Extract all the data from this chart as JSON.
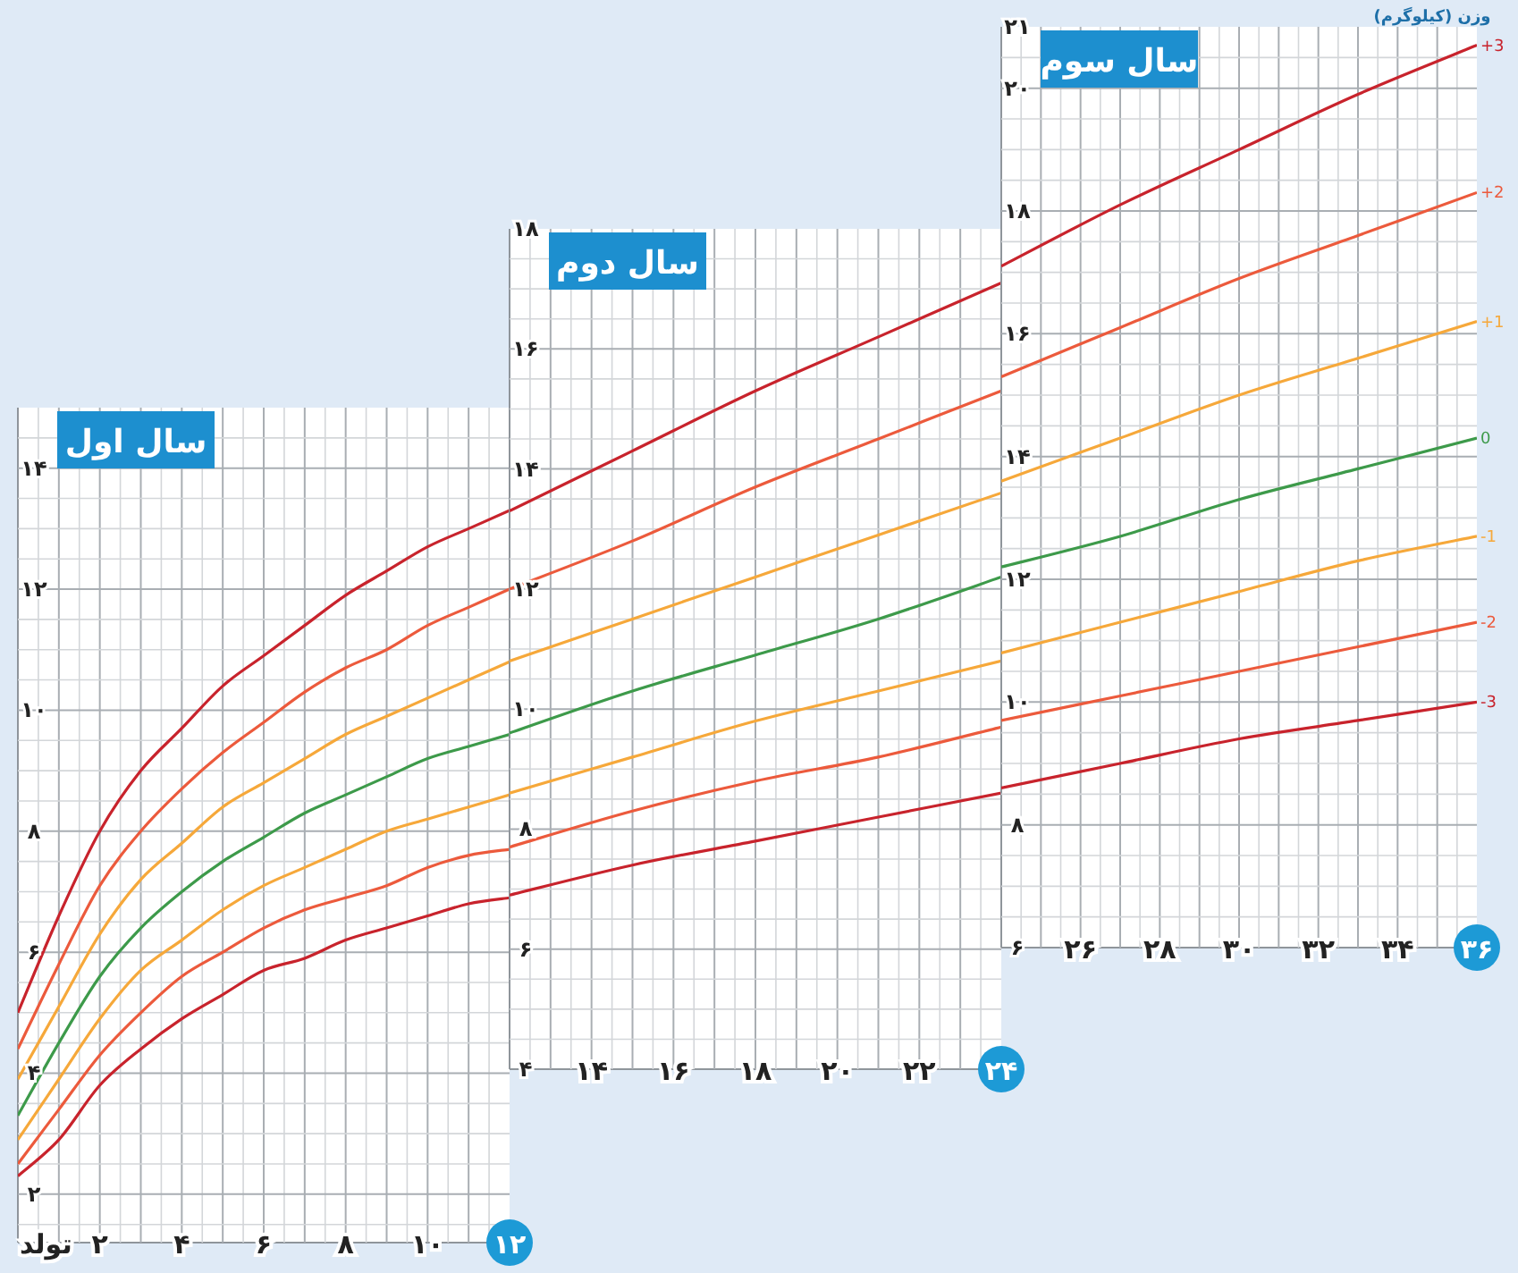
{
  "chart_data": [
    {
      "type": "line",
      "title": "سال اول",
      "xlim": [
        0,
        12
      ],
      "ylim": [
        1.2,
        15
      ],
      "grid": true,
      "xticks": [
        {
          "value": 0,
          "label": "تولد"
        },
        {
          "value": 2,
          "label": "۲"
        },
        {
          "value": 4,
          "label": "۴"
        },
        {
          "value": 6,
          "label": "۶"
        },
        {
          "value": 8,
          "label": "۸"
        },
        {
          "value": 10,
          "label": "۱۰"
        },
        {
          "value": 12,
          "label": "۱۲"
        }
      ],
      "yticks": [
        {
          "value": 2,
          "label": "۲"
        },
        {
          "value": 4,
          "label": "۴"
        },
        {
          "value": 6,
          "label": "۶"
        },
        {
          "value": 8,
          "label": "۸"
        },
        {
          "value": 10,
          "label": "۱۰"
        },
        {
          "value": 12,
          "label": "۱۲"
        },
        {
          "value": 14,
          "label": "۱۴"
        }
      ],
      "x": [
        0,
        1,
        2,
        3,
        4,
        5,
        6,
        7,
        8,
        9,
        10,
        11,
        12
      ],
      "series": [
        {
          "color": "#c8232c",
          "values": [
            5.0,
            6.6,
            8.0,
            9.0,
            9.7,
            10.4,
            10.9,
            11.4,
            11.9,
            12.3,
            12.7,
            13.0,
            13.3
          ]
        },
        {
          "color": "#ec5a3c",
          "values": [
            4.4,
            5.8,
            7.1,
            8.0,
            8.7,
            9.3,
            9.8,
            10.3,
            10.7,
            11.0,
            11.4,
            11.7,
            12.0
          ]
        },
        {
          "color": "#f6a83a",
          "values": [
            3.9,
            5.1,
            6.3,
            7.2,
            7.8,
            8.4,
            8.8,
            9.2,
            9.6,
            9.9,
            10.2,
            10.5,
            10.8
          ]
        },
        {
          "color": "#3d9a4a",
          "values": [
            3.3,
            4.5,
            5.6,
            6.4,
            7.0,
            7.5,
            7.9,
            8.3,
            8.6,
            8.9,
            9.2,
            9.4,
            9.6
          ]
        },
        {
          "color": "#f6a83a",
          "values": [
            2.9,
            3.9,
            4.9,
            5.7,
            6.2,
            6.7,
            7.1,
            7.4,
            7.7,
            8.0,
            8.2,
            8.4,
            8.6
          ]
        },
        {
          "color": "#ec5a3c",
          "values": [
            2.5,
            3.4,
            4.3,
            5.0,
            5.6,
            6.0,
            6.4,
            6.7,
            6.9,
            7.1,
            7.4,
            7.6,
            7.7
          ]
        },
        {
          "color": "#c8232c",
          "values": [
            2.3,
            2.9,
            3.8,
            4.4,
            4.9,
            5.3,
            5.7,
            5.9,
            6.2,
            6.4,
            6.6,
            6.8,
            6.9
          ]
        }
      ]
    },
    {
      "type": "line",
      "title": "سال دوم",
      "xlim": [
        12,
        24
      ],
      "ylim": [
        4,
        18
      ],
      "grid": true,
      "xticks": [
        {
          "value": 14,
          "label": "۱۴"
        },
        {
          "value": 16,
          "label": "۱۶"
        },
        {
          "value": 18,
          "label": "۱۸"
        },
        {
          "value": 20,
          "label": "۲۰"
        },
        {
          "value": 22,
          "label": "۲۲"
        },
        {
          "value": 24,
          "label": "۲۴"
        }
      ],
      "yticks": [
        {
          "value": 4,
          "label": "۴"
        },
        {
          "value": 6,
          "label": "۶"
        },
        {
          "value": 8,
          "label": "۸"
        },
        {
          "value": 10,
          "label": "۱۰"
        },
        {
          "value": 12,
          "label": "۱۲"
        },
        {
          "value": 14,
          "label": "۱۴"
        },
        {
          "value": 16,
          "label": "۱۶"
        },
        {
          "value": 18,
          "label": "۱۸"
        }
      ],
      "x": [
        12,
        15,
        18,
        21,
        24
      ],
      "series": [
        {
          "color": "#c8232c",
          "values": [
            13.3,
            14.3,
            15.3,
            16.2,
            17.1
          ]
        },
        {
          "color": "#ec5a3c",
          "values": [
            12.0,
            12.8,
            13.7,
            14.5,
            15.3
          ]
        },
        {
          "color": "#f6a83a",
          "values": [
            10.8,
            11.5,
            12.2,
            12.9,
            13.6
          ]
        },
        {
          "color": "#3d9a4a",
          "values": [
            9.6,
            10.3,
            10.9,
            11.5,
            12.2
          ]
        },
        {
          "color": "#f6a83a",
          "values": [
            8.6,
            9.2,
            9.8,
            10.3,
            10.8
          ]
        },
        {
          "color": "#ec5a3c",
          "values": [
            7.7,
            8.3,
            8.8,
            9.2,
            9.7
          ]
        },
        {
          "color": "#c8232c",
          "values": [
            6.9,
            7.4,
            7.8,
            8.2,
            8.6
          ]
        }
      ]
    },
    {
      "type": "line",
      "title": "سال سوم",
      "ylabel": "وزن (کیلوگرم)",
      "xlim": [
        24,
        36
      ],
      "ylim": [
        6,
        21
      ],
      "grid": true,
      "xticks": [
        {
          "value": 26,
          "label": "۲۶"
        },
        {
          "value": 28,
          "label": "۲۸"
        },
        {
          "value": 30,
          "label": "۳۰"
        },
        {
          "value": 32,
          "label": "۳۲"
        },
        {
          "value": 34,
          "label": "۳۴"
        },
        {
          "value": 36,
          "label": "۳۶"
        }
      ],
      "yticks": [
        {
          "value": 6,
          "label": "۶"
        },
        {
          "value": 8,
          "label": "۸"
        },
        {
          "value": 10,
          "label": "۱۰"
        },
        {
          "value": 12,
          "label": "۱۲"
        },
        {
          "value": 14,
          "label": "۱۴"
        },
        {
          "value": 16,
          "label": "۱۶"
        },
        {
          "value": 18,
          "label": "۱۸"
        },
        {
          "value": 20,
          "label": "۲۰"
        },
        {
          "value": 21,
          "label": "۲۱"
        }
      ],
      "x": [
        24,
        27,
        30,
        33,
        36
      ],
      "series": [
        {
          "name": "+3",
          "color": "#c8232c",
          "values": [
            17.1,
            18.1,
            19.0,
            19.9,
            20.7
          ]
        },
        {
          "name": "+2",
          "color": "#ec5a3c",
          "values": [
            15.3,
            16.1,
            16.9,
            17.6,
            18.3
          ]
        },
        {
          "name": "+1",
          "color": "#f6a83a",
          "values": [
            13.6,
            14.3,
            15.0,
            15.6,
            16.2
          ]
        },
        {
          "name": "0",
          "color": "#3d9a4a",
          "values": [
            12.2,
            12.7,
            13.3,
            13.8,
            14.3
          ]
        },
        {
          "name": "-1",
          "color": "#f6a83a",
          "values": [
            10.8,
            11.3,
            11.8,
            12.3,
            12.7
          ]
        },
        {
          "name": "-2",
          "color": "#ec5a3c",
          "values": [
            9.7,
            10.1,
            10.5,
            10.9,
            11.3
          ]
        },
        {
          "name": "-3",
          "color": "#c8232c",
          "values": [
            8.6,
            9.0,
            9.4,
            9.7,
            10.0
          ]
        }
      ]
    }
  ]
}
